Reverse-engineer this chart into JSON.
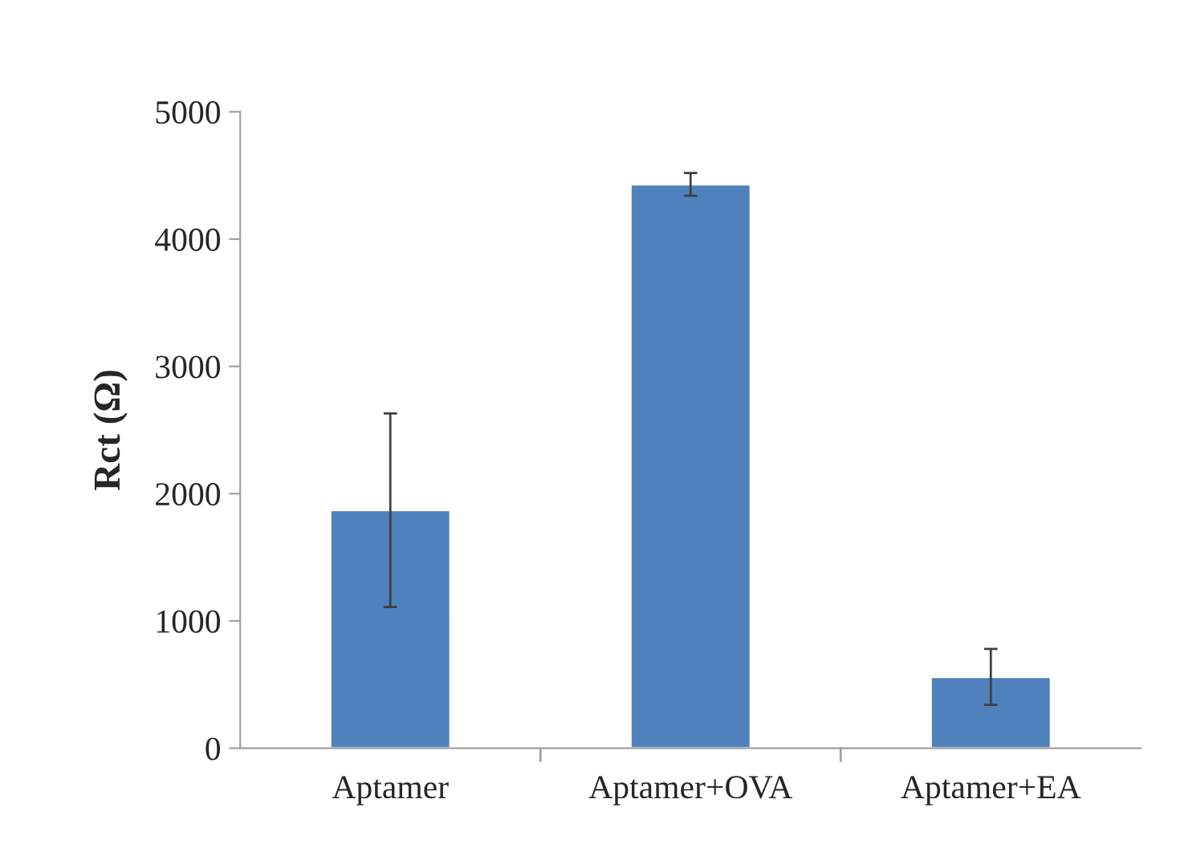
{
  "chart_data": {
    "type": "bar",
    "ylabel": "Rct (Ω)",
    "categories": [
      "Aptamer",
      "Aptamer+OVA",
      "Aptamer+EA"
    ],
    "values": [
      1870,
      4430,
      560
    ],
    "errors": [
      760,
      90,
      220
    ],
    "color": "#4f81bd",
    "ylim": [
      0,
      5000
    ],
    "yticks": [
      0,
      1000,
      2000,
      3000,
      4000,
      5000
    ],
    "grid": false
  }
}
